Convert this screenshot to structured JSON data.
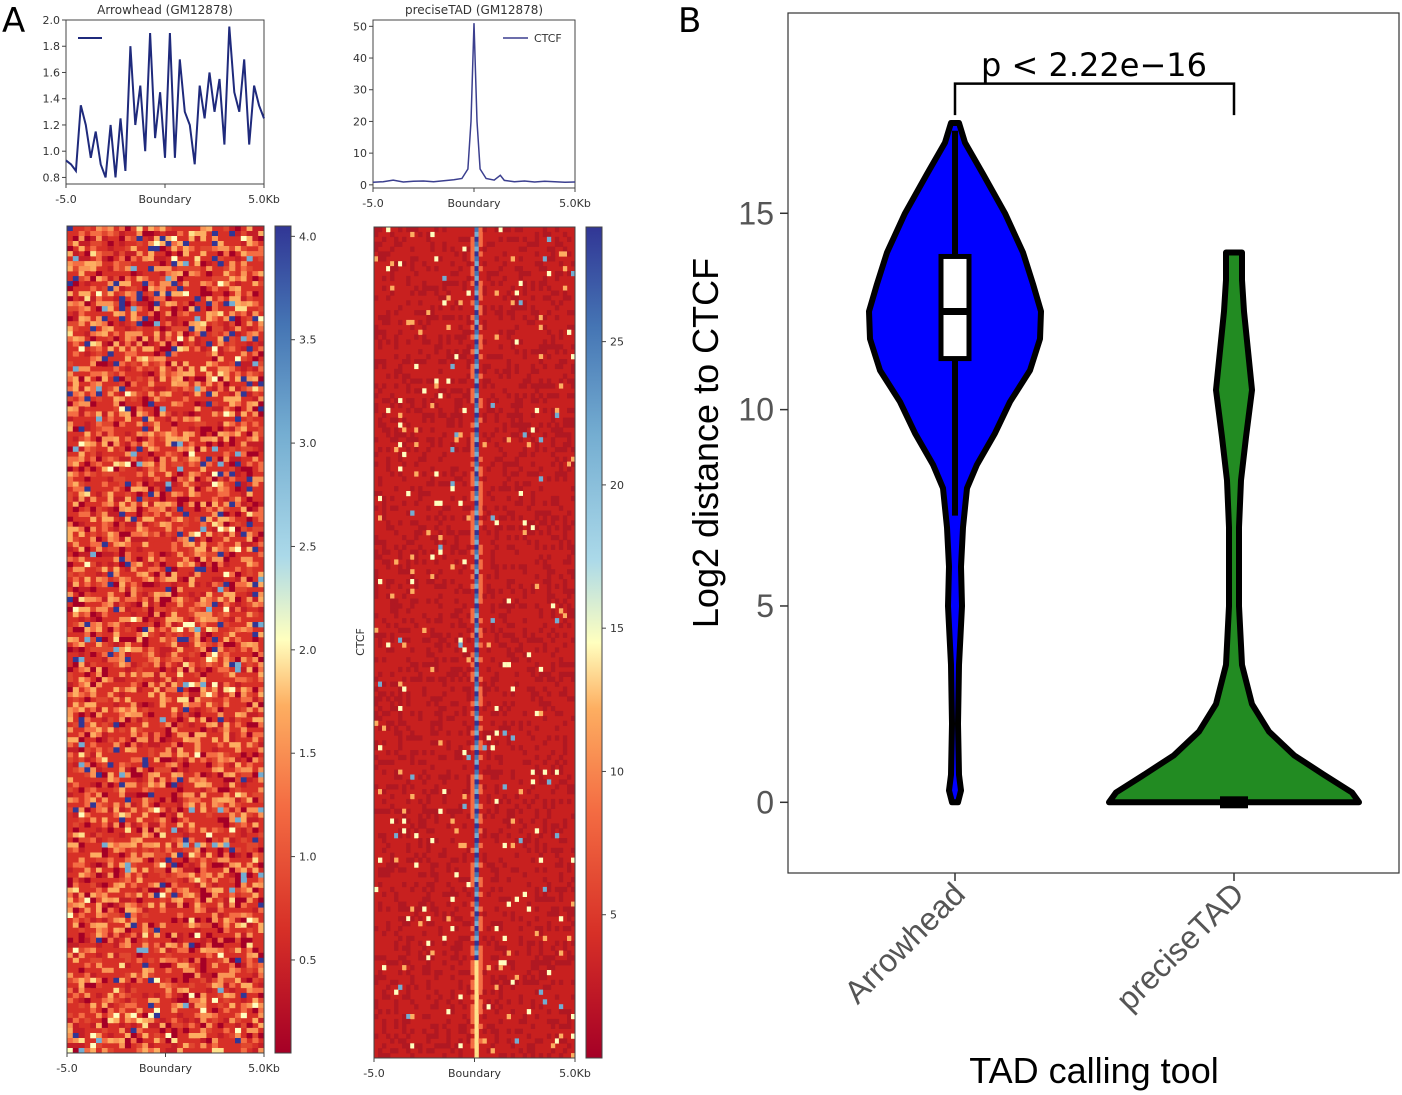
{
  "panels": {
    "a_label": "A",
    "b_label": "B"
  },
  "colors": {
    "profile_line": "#1f2a7c",
    "heatmap_low": "#b5121b",
    "heatmap_high": "#2a3d8f",
    "violin_arrowhead": "#0000ff",
    "violin_precisetad": "#228b22",
    "outline": "#000000"
  },
  "chart_data": [
    {
      "id": "arrowhead-profile",
      "type": "line",
      "title": "Arrowhead (GM12878)",
      "xlabel": "",
      "ylabel": "",
      "x_tick_labels": [
        "-5.0",
        "Boundary",
        "5.0Kb"
      ],
      "y_tick_labels": [
        "0.8",
        "1.0",
        "1.2",
        "1.4",
        "1.6",
        "1.8",
        "2.0"
      ],
      "xlim": [
        -5.0,
        5.0
      ],
      "ylim": [
        0.75,
        2.0
      ],
      "legend": {
        "placement": "top-left",
        "entries": [
          ""
        ]
      },
      "series": [
        {
          "x": [
            -5.0,
            -4.75,
            -4.5,
            -4.25,
            -4.0,
            -3.75,
            -3.5,
            -3.25,
            -3.0,
            -2.75,
            -2.5,
            -2.25,
            -2.0,
            -1.75,
            -1.5,
            -1.25,
            -1.0,
            -0.75,
            -0.5,
            -0.25,
            0.0,
            0.25,
            0.5,
            0.75,
            1.0,
            1.25,
            1.5,
            1.75,
            2.0,
            2.25,
            2.5,
            2.75,
            3.0,
            3.25,
            3.5,
            3.75,
            4.0,
            4.25,
            4.5,
            4.75,
            5.0
          ],
          "values": [
            0.93,
            0.9,
            0.85,
            1.35,
            1.2,
            0.95,
            1.15,
            0.9,
            0.8,
            1.2,
            0.8,
            1.25,
            0.85,
            1.8,
            1.2,
            1.5,
            1.0,
            1.9,
            1.1,
            1.45,
            0.95,
            1.9,
            0.95,
            1.7,
            1.3,
            1.2,
            0.9,
            1.5,
            1.25,
            1.6,
            1.3,
            1.55,
            1.05,
            1.95,
            1.45,
            1.3,
            1.7,
            1.05,
            1.5,
            1.35,
            1.25
          ]
        }
      ]
    },
    {
      "id": "precisetad-profile",
      "type": "line",
      "title": "preciseTAD (GM12878)",
      "xlabel": "",
      "ylabel": "",
      "x_tick_labels": [
        "-5.0",
        "Boundary",
        "5.0Kb"
      ],
      "y_tick_labels": [
        "0",
        "10",
        "20",
        "30",
        "40",
        "50"
      ],
      "xlim": [
        -5.0,
        5.0
      ],
      "ylim": [
        -1,
        52
      ],
      "legend": {
        "placement": "top-right",
        "entries": [
          "CTCF"
        ]
      },
      "series": [
        {
          "name": "CTCF",
          "x": [
            -5.0,
            -4.5,
            -4.0,
            -3.5,
            -3.0,
            -2.5,
            -2.0,
            -1.5,
            -1.0,
            -0.6,
            -0.3,
            -0.15,
            0.0,
            0.15,
            0.3,
            0.6,
            1.0,
            1.3,
            1.5,
            2.0,
            2.5,
            3.0,
            3.5,
            4.0,
            4.5,
            5.0
          ],
          "values": [
            0.8,
            1.0,
            1.5,
            0.9,
            1.1,
            1.2,
            1.0,
            1.3,
            1.6,
            2.0,
            5.0,
            20.0,
            51.0,
            20.0,
            5.0,
            2.0,
            1.5,
            3.0,
            1.4,
            1.0,
            1.2,
            0.9,
            1.1,
            1.0,
            0.8,
            0.9
          ]
        }
      ]
    },
    {
      "id": "arrowhead-heatmap",
      "type": "heatmap",
      "x_tick_labels": [
        "-5.0",
        "Boundary",
        "5.0Kb"
      ],
      "colorbar_ticks": [
        "0.5",
        "1.0",
        "1.5",
        "2.0",
        "2.5",
        "3.0",
        "3.5",
        "4.0"
      ],
      "colorbar_range": [
        0.05,
        4.05
      ],
      "pattern": "uniform noise, values mostly 0.3-1.5 with scattered high spots"
    },
    {
      "id": "precisetad-heatmap",
      "type": "heatmap",
      "ylabel": "CTCF",
      "x_tick_labels": [
        "-5.0",
        "Boundary",
        "5.0Kb"
      ],
      "colorbar_ticks": [
        "5",
        "10",
        "15",
        "20",
        "25"
      ],
      "colorbar_range": [
        0,
        29
      ],
      "pattern": "strong vertical signal at boundary, low background"
    },
    {
      "id": "violin",
      "type": "violin",
      "title": "",
      "xlabel": "TAD calling tool",
      "ylabel": "Log2 distance to CTCF",
      "categories": [
        "Arrowhead",
        "preciseTAD"
      ],
      "ylim": [
        -1.8,
        20.1
      ],
      "y_ticks": [
        0,
        5,
        10,
        15
      ],
      "grid": false,
      "annotation": "p < 2.22e−16",
      "series": [
        {
          "category": "Arrowhead",
          "color": "#0000ff",
          "box": {
            "q1": 11.3,
            "median": 12.5,
            "q3": 13.9
          },
          "whisker": [
            7.3,
            17.1
          ],
          "max": 17.3,
          "min": 0.0
        },
        {
          "category": "preciseTAD",
          "color": "#228b22",
          "box": {
            "q1": 0.0,
            "median": 0.0,
            "q3": 0.0
          },
          "max": 14.0,
          "min": 0.0
        }
      ]
    }
  ]
}
